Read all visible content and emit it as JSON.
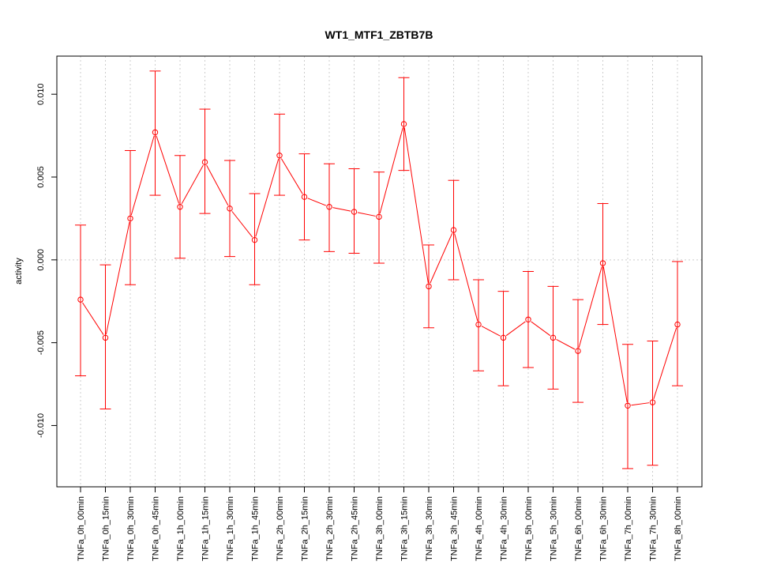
{
  "chart_data": {
    "type": "line",
    "title": "WT1_MTF1_ZBTB7B",
    "xlabel": "",
    "ylabel": "activity",
    "ylim": [
      -0.0137,
      0.0123
    ],
    "yticks": [
      -0.01,
      -0.005,
      0.0,
      0.005,
      0.01
    ],
    "ytick_labels": [
      "-0.010",
      "-0.005",
      "0.000",
      "0.005",
      "0.010"
    ],
    "grid": true,
    "color": "#ff0000",
    "categories": [
      "TNFa_0h_00min",
      "TNFa_0h_15min",
      "TNFa_0h_30min",
      "TNFa_0h_45min",
      "TNFa_1h_00min",
      "TNFa_1h_15min",
      "TNFa_1h_30min",
      "TNFa_1h_45min",
      "TNFa_2h_00min",
      "TNFa_2h_15min",
      "TNFa_2h_30min",
      "TNFa_2h_45min",
      "TNFa_3h_00min",
      "TNFa_3h_15min",
      "TNFa_3h_30min",
      "TNFa_3h_45min",
      "TNFa_4h_00min",
      "TNFa_4h_30min",
      "TNFa_5h_00min",
      "TNFa_5h_30min",
      "TNFa_6h_00min",
      "TNFa_6h_30min",
      "TNFa_7h_00min",
      "TNFa_7h_30min",
      "TNFa_8h_00min"
    ],
    "series": [
      {
        "name": "activity",
        "values": [
          -0.0024,
          -0.0047,
          0.0025,
          0.0077,
          0.0032,
          0.0059,
          0.0031,
          0.0012,
          0.0063,
          0.0038,
          0.0032,
          0.0029,
          0.0026,
          0.0082,
          -0.0016,
          0.0018,
          -0.0039,
          -0.0047,
          -0.0036,
          -0.0047,
          -0.0055,
          -0.0002,
          -0.0088,
          -0.0086,
          -0.0039
        ],
        "error_low": [
          -0.007,
          -0.009,
          -0.0015,
          0.0039,
          0.0001,
          0.0028,
          0.0002,
          -0.0015,
          0.0039,
          0.0012,
          0.0005,
          0.0004,
          -0.0002,
          0.0054,
          -0.0041,
          -0.0012,
          -0.0067,
          -0.0076,
          -0.0065,
          -0.0078,
          -0.0086,
          -0.0039,
          -0.0126,
          -0.0124,
          -0.0076
        ],
        "error_high": [
          0.0021,
          -0.0003,
          0.0066,
          0.0114,
          0.0063,
          0.0091,
          0.006,
          0.004,
          0.0088,
          0.0064,
          0.0058,
          0.0055,
          0.0053,
          0.011,
          0.0009,
          0.0048,
          -0.0012,
          -0.0019,
          -0.0007,
          -0.0016,
          -0.0024,
          0.0034,
          -0.0051,
          -0.0049,
          -0.0001
        ]
      }
    ]
  }
}
